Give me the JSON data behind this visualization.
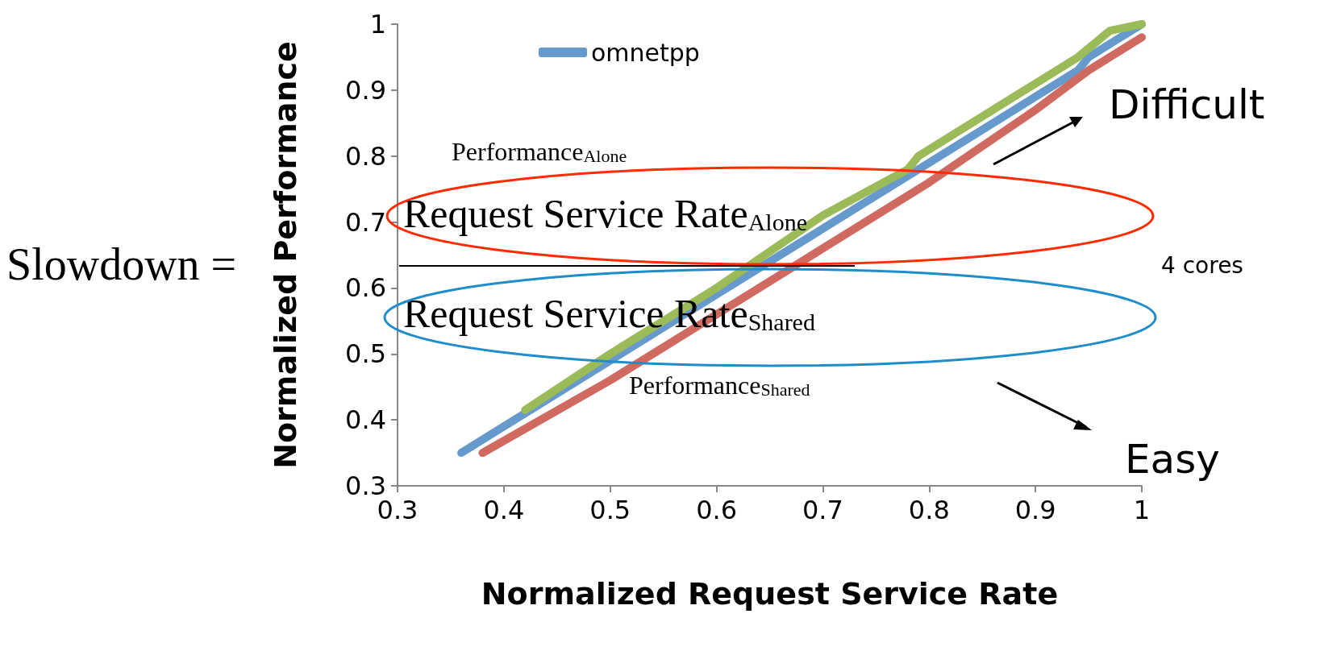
{
  "chart_data": {
    "type": "line",
    "xlabel": "Normalized Request Service Rate",
    "ylabel": "Normalized Performance",
    "xlim": [
      0.3,
      1
    ],
    "xticks": [
      0.3,
      0.4,
      0.5,
      0.6,
      0.7,
      0.8,
      0.9,
      1
    ],
    "ylim": [
      0.3,
      1
    ],
    "yticks": [
      0.3,
      0.4,
      0.5,
      0.6,
      0.7,
      0.8,
      0.9,
      1
    ],
    "grid": false,
    "legend": "top left",
    "marker": "none",
    "line_style": "solid",
    "series": [
      {
        "name": "omnetpp",
        "color": "#6699cc",
        "x": [
          0.36,
          0.4,
          0.5,
          0.6,
          0.7,
          0.8,
          0.9,
          0.94,
          0.95,
          0.97,
          1
        ],
        "values": [
          0.35,
          0.39,
          0.49,
          0.59,
          0.69,
          0.79,
          0.89,
          0.93,
          0.95,
          0.97,
          1
        ]
      },
      {
        "color": "#d06a60",
        "x": [
          0.38,
          0.5,
          0.6,
          0.7,
          0.8,
          0.9,
          0.95,
          1
        ],
        "values": [
          0.35,
          0.46,
          0.56,
          0.66,
          0.76,
          0.87,
          0.93,
          0.98
        ]
      },
      {
        "color": "#9bbb59",
        "x": [
          0.42,
          0.5,
          0.6,
          0.7,
          0.78,
          0.79,
          0.9,
          0.94,
          0.97,
          1
        ],
        "values": [
          0.415,
          0.5,
          0.6,
          0.71,
          0.78,
          0.8,
          0.91,
          0.95,
          0.99,
          1
        ]
      }
    ],
    "annotations": [
      "Slowdown =",
      "Request Service Rate$_{Alone}$",
      "Request Service Rate$_{Shared}$",
      "Performance$_{Alone}$",
      "Performance$_{Shared}$",
      "Difficult",
      "Easy",
      "4 cores"
    ]
  }
}
